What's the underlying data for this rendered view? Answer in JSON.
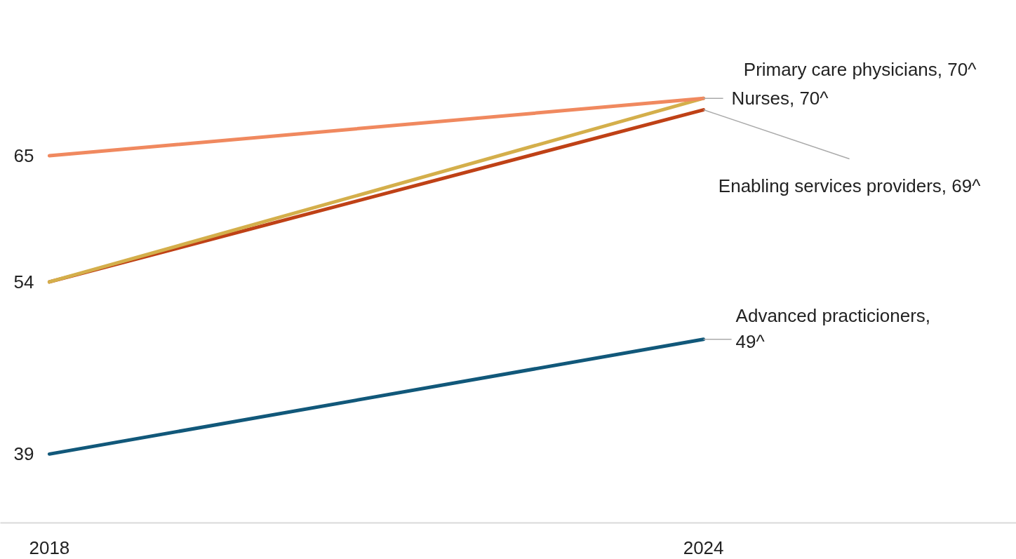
{
  "chart_data": {
    "type": "line",
    "x": [
      2018,
      2024
    ],
    "xlim": [
      2017.55,
      2026.87
    ],
    "xticks": [
      2018,
      2024
    ],
    "tick_labels": "x",
    "grid": false,
    "legend": false,
    "marker": "none",
    "line_style": "solid",
    "series": [
      {
        "name": "Primary care physicians,",
        "color": "#f0895f",
        "values": [
          65,
          70
        ],
        "value_labels": [
          "65",
          "70^"
        ]
      },
      {
        "name": "Nurses,",
        "color": "#d4af4b",
        "values": [
          54,
          70
        ],
        "value_labels": [
          null,
          "70^"
        ]
      },
      {
        "name": "Enabling services providers,",
        "color": "#bf4116",
        "values": [
          54,
          69
        ],
        "value_labels": [
          "54",
          "69^"
        ]
      },
      {
        "name": "Advanced practicioners,",
        "color": "#11587a",
        "values": [
          39,
          49
        ],
        "value_labels": [
          "39",
          "49^"
        ]
      }
    ]
  }
}
